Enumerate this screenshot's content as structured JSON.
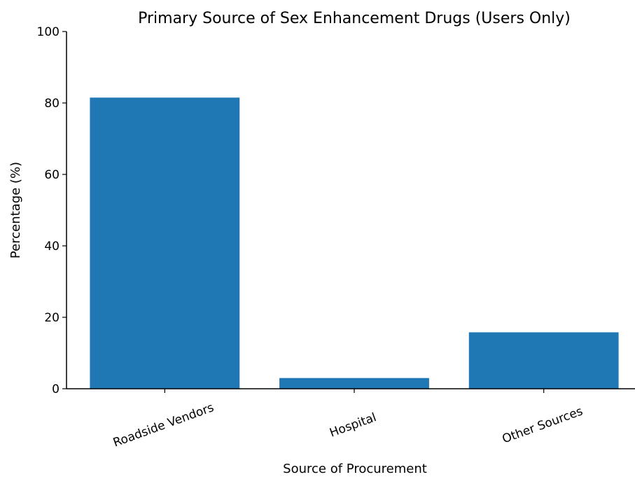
{
  "chart_data": {
    "type": "bar",
    "title": "Primary Source of Sex Enhancement Drugs (Users Only)",
    "xlabel": "Source of Procurement",
    "ylabel": "Percentage (%)",
    "categories": [
      "Roadside Vendors",
      "Hospital",
      "Other Sources"
    ],
    "values": [
      81.5,
      3.0,
      15.8
    ],
    "ylim": [
      0,
      100
    ],
    "yticks": [
      0,
      20,
      40,
      60,
      80,
      100
    ],
    "bar_color": "#1f77b4",
    "grid": false,
    "legend": "none",
    "xtick_rotation_deg": -20
  }
}
